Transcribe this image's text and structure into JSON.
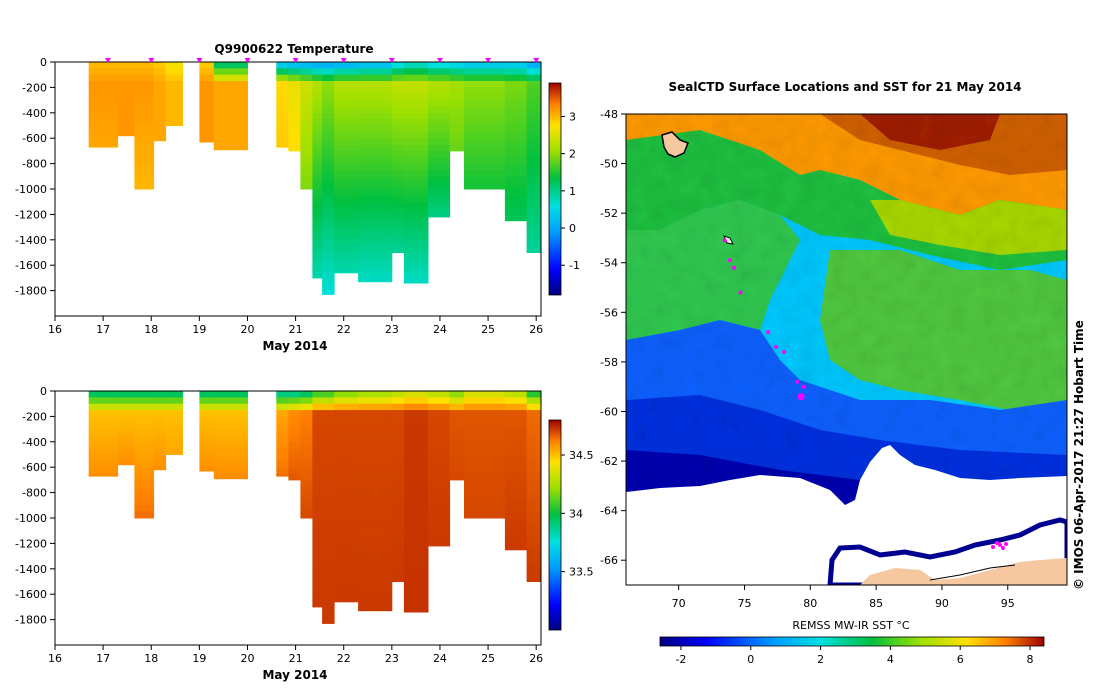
{
  "chart_data": [
    {
      "type": "heatmap",
      "title": "Q9900622  Temperature",
      "xlabel": "May 2014",
      "x_ticks": [
        16,
        17,
        18,
        19,
        20,
        21,
        22,
        23,
        24,
        25,
        26
      ],
      "xlim": [
        16,
        26.1
      ],
      "y_ticks": [
        0,
        -200,
        -400,
        -600,
        -800,
        -1000,
        -1200,
        -1400,
        -1600,
        -1800
      ],
      "ylim": [
        -2000,
        0
      ],
      "colorbar_ticks": [
        3,
        2,
        1,
        0,
        -1
      ],
      "colorbar_range": [
        -1.8,
        3.9
      ],
      "colormap": "jet-like",
      "profile_markers": [
        17.1,
        18.0,
        19.0,
        20.0,
        21.0,
        22.0,
        23.0,
        24.0,
        25.0,
        26.0
      ],
      "marker_color": "#ff00ff",
      "profiles": [
        {
          "x0": 16.7,
          "x1": 17.3,
          "depth": 670,
          "surface": 3.0,
          "mid": 3.2,
          "deep": 3.1
        },
        {
          "x0": 17.3,
          "x1": 17.65,
          "depth": 580,
          "surface": 3.0,
          "mid": 3.2,
          "deep": 3.2
        },
        {
          "x0": 17.65,
          "x1": 18.05,
          "depth": 1000,
          "surface": 3.0,
          "mid": 3.2,
          "deep": 3.0
        },
        {
          "x0": 18.05,
          "x1": 18.3,
          "depth": 620,
          "surface": 2.9,
          "mid": 3.1,
          "deep": 3.1
        },
        {
          "x0": 18.3,
          "x1": 18.65,
          "depth": 500,
          "surface": 2.7,
          "mid": 3.0,
          "deep": 3.0
        },
        {
          "x0": 19.0,
          "x1": 19.3,
          "depth": 630,
          "surface": 2.9,
          "mid": 3.2,
          "deep": 3.2
        },
        {
          "x0": 19.3,
          "x1": 20.0,
          "depth": 690,
          "surface": 1.2,
          "mid": 3.1,
          "deep": 3.1
        },
        {
          "x0": 20.6,
          "x1": 20.85,
          "depth": 670,
          "surface": 0.4,
          "mid": 2.8,
          "deep": 2.9
        },
        {
          "x0": 20.85,
          "x1": 21.1,
          "depth": 700,
          "surface": 0.3,
          "mid": 2.6,
          "deep": 2.8
        },
        {
          "x0": 21.1,
          "x1": 21.35,
          "depth": 1000,
          "surface": 0.2,
          "mid": 2.4,
          "deep": 1.9
        },
        {
          "x0": 21.35,
          "x1": 21.55,
          "depth": 1700,
          "surface": 0.1,
          "mid": 2.2,
          "deep": 0.8
        },
        {
          "x0": 21.55,
          "x1": 21.8,
          "depth": 1830,
          "surface": 0.1,
          "mid": 2.0,
          "deep": 0.6
        },
        {
          "x0": 21.8,
          "x1": 22.3,
          "depth": 1660,
          "surface": 0.2,
          "mid": 2.2,
          "deep": 0.8
        },
        {
          "x0": 22.3,
          "x1": 23.0,
          "depth": 1730,
          "surface": 0.3,
          "mid": 2.2,
          "deep": 0.7
        },
        {
          "x0": 23.0,
          "x1": 23.25,
          "depth": 1500,
          "surface": 0.6,
          "mid": 2.3,
          "deep": 0.9
        },
        {
          "x0": 23.25,
          "x1": 23.75,
          "depth": 1740,
          "surface": 0.8,
          "mid": 2.3,
          "deep": 0.7
        },
        {
          "x0": 23.75,
          "x1": 24.2,
          "depth": 1220,
          "surface": 0.6,
          "mid": 2.2,
          "deep": 1.0
        },
        {
          "x0": 24.2,
          "x1": 24.5,
          "depth": 700,
          "surface": 0.5,
          "mid": 2.1,
          "deep": 1.8
        },
        {
          "x0": 24.5,
          "x1": 25.35,
          "depth": 1000,
          "surface": 0.4,
          "mid": 2.0,
          "deep": 1.4
        },
        {
          "x0": 25.35,
          "x1": 25.8,
          "depth": 1250,
          "surface": 0.4,
          "mid": 1.9,
          "deep": 1.2
        },
        {
          "x0": 25.8,
          "x1": 26.1,
          "depth": 1500,
          "surface": 0.1,
          "mid": 1.7,
          "deep": 0.9
        }
      ]
    },
    {
      "type": "heatmap",
      "title": "",
      "xlabel": "May 2014",
      "x_ticks": [
        16,
        17,
        18,
        19,
        20,
        21,
        22,
        23,
        24,
        25,
        26
      ],
      "xlim": [
        16,
        26.1
      ],
      "y_ticks": [
        0,
        -200,
        -400,
        -600,
        -800,
        -1000,
        -1200,
        -1400,
        -1600,
        -1800
      ],
      "ylim": [
        -2000,
        0
      ],
      "colorbar_ticks": [
        34.5,
        34,
        33.5
      ],
      "colorbar_range": [
        33.0,
        34.8
      ],
      "colormap": "jet-like",
      "profiles": [
        {
          "x0": 16.7,
          "x1": 17.3,
          "depth": 670,
          "surface": 33.95,
          "mid": 34.5,
          "deep": 34.6
        },
        {
          "x0": 17.3,
          "x1": 17.65,
          "depth": 580,
          "surface": 33.95,
          "mid": 34.5,
          "deep": 34.6
        },
        {
          "x0": 17.65,
          "x1": 18.05,
          "depth": 1000,
          "surface": 33.95,
          "mid": 34.5,
          "deep": 34.65
        },
        {
          "x0": 18.05,
          "x1": 18.3,
          "depth": 620,
          "surface": 33.95,
          "mid": 34.5,
          "deep": 34.6
        },
        {
          "x0": 18.3,
          "x1": 18.65,
          "depth": 500,
          "surface": 33.95,
          "mid": 34.5,
          "deep": 34.55
        },
        {
          "x0": 19.0,
          "x1": 19.3,
          "depth": 630,
          "surface": 33.95,
          "mid": 34.5,
          "deep": 34.6
        },
        {
          "x0": 19.3,
          "x1": 20.0,
          "depth": 690,
          "surface": 33.95,
          "mid": 34.5,
          "deep": 34.6
        },
        {
          "x0": 20.6,
          "x1": 20.85,
          "depth": 670,
          "surface": 33.9,
          "mid": 34.55,
          "deep": 34.65
        },
        {
          "x0": 20.85,
          "x1": 21.1,
          "depth": 700,
          "surface": 33.9,
          "mid": 34.6,
          "deep": 34.68
        },
        {
          "x0": 21.1,
          "x1": 21.35,
          "depth": 1000,
          "surface": 33.95,
          "mid": 34.62,
          "deep": 34.7
        },
        {
          "x0": 21.35,
          "x1": 21.55,
          "depth": 1700,
          "surface": 34.1,
          "mid": 34.7,
          "deep": 34.72
        },
        {
          "x0": 21.55,
          "x1": 21.8,
          "depth": 1830,
          "surface": 34.1,
          "mid": 34.7,
          "deep": 34.72
        },
        {
          "x0": 21.8,
          "x1": 22.3,
          "depth": 1660,
          "surface": 34.2,
          "mid": 34.7,
          "deep": 34.72
        },
        {
          "x0": 22.3,
          "x1": 23.0,
          "depth": 1730,
          "surface": 34.25,
          "mid": 34.7,
          "deep": 34.72
        },
        {
          "x0": 23.0,
          "x1": 23.25,
          "depth": 1500,
          "surface": 34.3,
          "mid": 34.7,
          "deep": 34.72
        },
        {
          "x0": 23.25,
          "x1": 23.75,
          "depth": 1740,
          "surface": 34.35,
          "mid": 34.72,
          "deep": 34.73
        },
        {
          "x0": 23.75,
          "x1": 24.2,
          "depth": 1220,
          "surface": 34.3,
          "mid": 34.7,
          "deep": 34.72
        },
        {
          "x0": 24.2,
          "x1": 24.5,
          "depth": 700,
          "surface": 34.2,
          "mid": 34.68,
          "deep": 34.7
        },
        {
          "x0": 24.5,
          "x1": 25.35,
          "depth": 1000,
          "surface": 34.35,
          "mid": 34.68,
          "deep": 34.7
        },
        {
          "x0": 25.35,
          "x1": 25.8,
          "depth": 1250,
          "surface": 34.3,
          "mid": 34.68,
          "deep": 34.72
        },
        {
          "x0": 25.8,
          "x1": 26.1,
          "depth": 1500,
          "surface": 34.05,
          "mid": 34.65,
          "deep": 34.72
        }
      ]
    },
    {
      "type": "heatmap",
      "title": "SealCTD Surface Locations and SST for 21 May 2014",
      "xlabel": "",
      "ylabel": "",
      "x_ticks": [
        70,
        75,
        80,
        85,
        90,
        95
      ],
      "xlim": [
        66,
        99.5
      ],
      "y_ticks": [
        -48,
        -50,
        -52,
        -54,
        -56,
        -58,
        -60,
        -62,
        -64,
        -66
      ],
      "ylim": [
        -67,
        -48
      ],
      "colorbar_label": "REMSS MW-IR SST °C",
      "colorbar_ticks": [
        -2,
        0,
        2,
        4,
        6,
        8
      ],
      "colorbar_range": [
        -2.6,
        8.4
      ],
      "colormap": "jet-like",
      "seal_track": [
        {
          "lon": 73.5,
          "lat": -53.1
        },
        {
          "lon": 73.9,
          "lat": -53.9
        },
        {
          "lon": 74.2,
          "lat": -54.2
        },
        {
          "lon": 74.7,
          "lat": -55.2
        },
        {
          "lon": 76.8,
          "lat": -56.8
        },
        {
          "lon": 77.4,
          "lat": -57.4
        },
        {
          "lon": 78.0,
          "lat": -57.6
        },
        {
          "lon": 79.0,
          "lat": -58.8
        },
        {
          "lon": 79.5,
          "lat": -59.0
        },
        {
          "lon": 79.3,
          "lat": -59.4
        }
      ],
      "track_color": "#ff00ff",
      "vertical_annotation": "© IMOS 06-Apr-2017 21:27 Hobart Time"
    }
  ]
}
